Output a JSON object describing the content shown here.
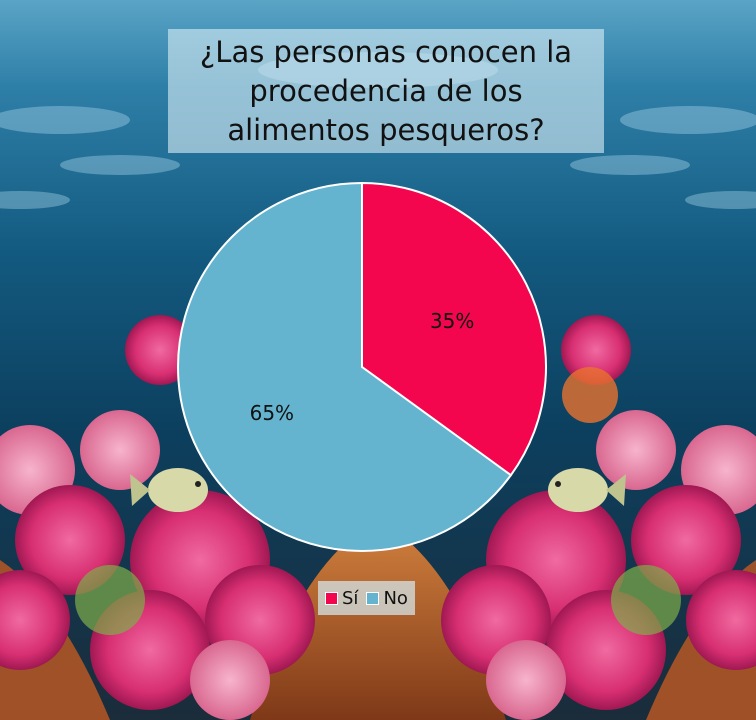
{
  "chart_data": {
    "type": "pie",
    "title": "¿Las personas conocen la procedencia de los alimentos pesqueros?",
    "categories": [
      "Sí",
      "No"
    ],
    "values": [
      35,
      65
    ],
    "data_labels": [
      "35%",
      "65%"
    ],
    "colors": [
      "#F4064F",
      "#64B4D0"
    ],
    "legend_position": "bottom"
  },
  "background": {
    "description_icon": "coral-reef-underwater-image",
    "colors": {
      "water_top": "#3E8FB5",
      "water_deep": "#0E4668",
      "coral_pink": "#E0417E",
      "coral_orange": "#D4702E"
    }
  }
}
